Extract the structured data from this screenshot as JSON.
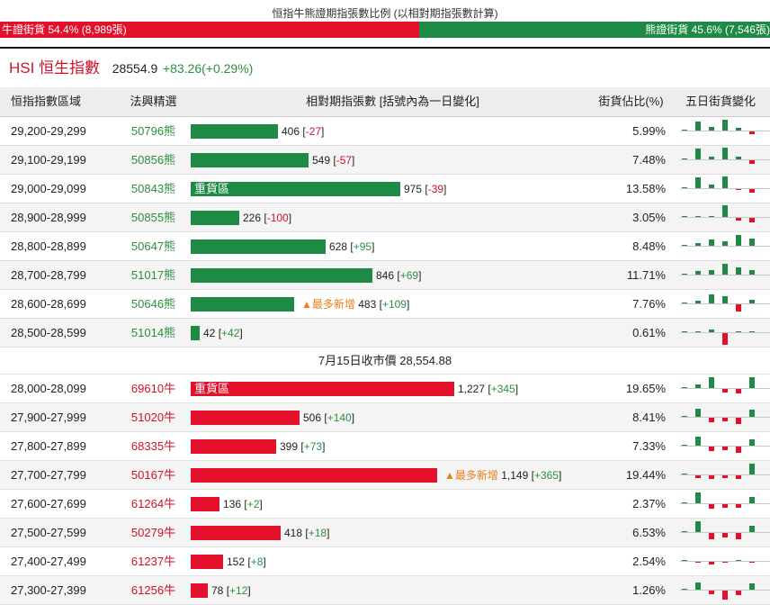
{
  "ratio": {
    "title": "恒指牛熊證期指張數比例 (以相對期指張數計算)",
    "bull_text": "牛證街貨 54.4% (8,989張)",
    "bear_text": "熊證街貨 45.6% (7,546張)",
    "bull_pct": 54.4,
    "bear_pct": 45.6
  },
  "index": {
    "name": "HSI 恒生指數",
    "price": "28554.9",
    "change": "+83.26(+0.29%)"
  },
  "header": {
    "range": "恒指指數區域",
    "pick": "法興精選",
    "contracts": "相對期指張數 [括號內為一日變化]",
    "share": "街貨佔比(%)",
    "five_day": "五日街貨變化"
  },
  "separator_text": "7月15日收市價 28,554.88",
  "colors": {
    "bear": "#1f8a45",
    "bull": "#e3102c"
  },
  "max_contracts": 1227,
  "bear_rows": [
    {
      "range": "29,200-29,299",
      "code": "50796熊",
      "label": "",
      "note": "",
      "qty": 406,
      "qty_text": "406",
      "chg": "-27",
      "share": "5.99%",
      "spark": [
        0.1,
        0.8,
        0.3,
        0.9,
        0.2,
        -0.2
      ]
    },
    {
      "range": "29,100-29,199",
      "code": "50856熊",
      "label": "",
      "note": "",
      "qty": 549,
      "qty_text": "549",
      "chg": "-57",
      "share": "7.48%",
      "spark": [
        0.1,
        0.9,
        0.2,
        1.0,
        0.2,
        -0.3
      ]
    },
    {
      "range": "29,000-29,099",
      "code": "50843熊",
      "label": "重貨區",
      "note": "",
      "qty": 975,
      "qty_text": "975",
      "chg": "-39",
      "share": "13.58%",
      "spark": [
        0.1,
        0.9,
        0.3,
        1.0,
        -0.1,
        -0.3
      ]
    },
    {
      "range": "28,900-28,999",
      "code": "50855熊",
      "label": "",
      "note": "",
      "qty": 226,
      "qty_text": "226",
      "chg": "-100",
      "share": "3.05%",
      "spark": [
        0.05,
        0.1,
        0.1,
        1.0,
        -0.2,
        -0.4
      ]
    },
    {
      "range": "28,800-28,899",
      "code": "50647熊",
      "label": "",
      "note": "",
      "qty": 628,
      "qty_text": "628",
      "chg": "+95",
      "share": "8.48%",
      "spark": [
        0.1,
        0.2,
        0.5,
        0.4,
        0.9,
        0.6
      ]
    },
    {
      "range": "28,700-28,799",
      "code": "51017熊",
      "label": "",
      "note": "",
      "qty": 846,
      "qty_text": "846",
      "chg": "+69",
      "share": "11.71%",
      "spark": [
        0.1,
        0.3,
        0.4,
        0.9,
        0.6,
        0.4
      ]
    },
    {
      "range": "28,600-28,699",
      "code": "50646熊",
      "label": "",
      "note": "▲最多新增",
      "qty": 483,
      "qty_text": "483",
      "chg": "+109",
      "share": "7.76%",
      "spark": [
        0.1,
        0.2,
        0.8,
        0.6,
        -0.6,
        0.3
      ]
    },
    {
      "range": "28,500-28,599",
      "code": "51014熊",
      "label": "",
      "note": "",
      "qty": 42,
      "qty_text": "42",
      "chg": "+42",
      "share": "0.61%",
      "spark": [
        0.05,
        0.05,
        0.2,
        -1.0,
        0.05,
        0.05
      ]
    }
  ],
  "bull_rows": [
    {
      "range": "28,000-28,099",
      "code": "69610牛",
      "label": "重貨區",
      "note": "",
      "qty": 1227,
      "qty_text": "1,227",
      "chg": "+345",
      "share": "19.65%",
      "spark": [
        0.1,
        0.3,
        0.9,
        -0.3,
        -0.4,
        0.9
      ]
    },
    {
      "range": "27,900-27,999",
      "code": "51020牛",
      "label": "",
      "note": "",
      "qty": 506,
      "qty_text": "506",
      "chg": "+140",
      "share": "8.41%",
      "spark": [
        0.1,
        0.7,
        -0.4,
        -0.3,
        -0.5,
        0.6
      ]
    },
    {
      "range": "27,800-27,899",
      "code": "68335牛",
      "label": "",
      "note": "",
      "qty": 399,
      "qty_text": "399",
      "chg": "+73",
      "share": "7.33%",
      "spark": [
        0.1,
        0.8,
        -0.4,
        -0.3,
        -0.5,
        0.5
      ]
    },
    {
      "range": "27,700-27,799",
      "code": "50167牛",
      "label": "",
      "note": "▲最多新增",
      "qty": 1149,
      "qty_text": "1,149",
      "chg": "+365",
      "share": "19.44%",
      "spark": [
        0.1,
        -0.2,
        -0.3,
        -0.2,
        -0.3,
        0.9
      ]
    },
    {
      "range": "27,600-27,699",
      "code": "61264牛",
      "label": "",
      "note": "",
      "qty": 136,
      "qty_text": "136",
      "chg": "+2",
      "share": "2.37%",
      "spark": [
        0.1,
        0.9,
        -0.4,
        -0.3,
        -0.3,
        0.5
      ]
    },
    {
      "range": "27,500-27,599",
      "code": "50279牛",
      "label": "",
      "note": "",
      "qty": 418,
      "qty_text": "418",
      "chg": "+18",
      "share": "6.53%",
      "spark": [
        0.1,
        0.9,
        -0.5,
        -0.4,
        -0.5,
        0.5
      ]
    },
    {
      "range": "27,400-27,499",
      "code": "61237牛",
      "label": "",
      "note": "",
      "qty": 152,
      "qty_text": "152",
      "chg": "+8",
      "share": "2.54%",
      "spark": [
        0.1,
        -0.1,
        -0.2,
        -0.1,
        0.1,
        -0.1
      ]
    },
    {
      "range": "27,300-27,399",
      "code": "61256牛",
      "label": "",
      "note": "",
      "qty": 78,
      "qty_text": "78",
      "chg": "+12",
      "share": "1.26%",
      "spark": [
        0.1,
        0.6,
        -0.3,
        -0.8,
        -0.4,
        0.5
      ]
    }
  ]
}
